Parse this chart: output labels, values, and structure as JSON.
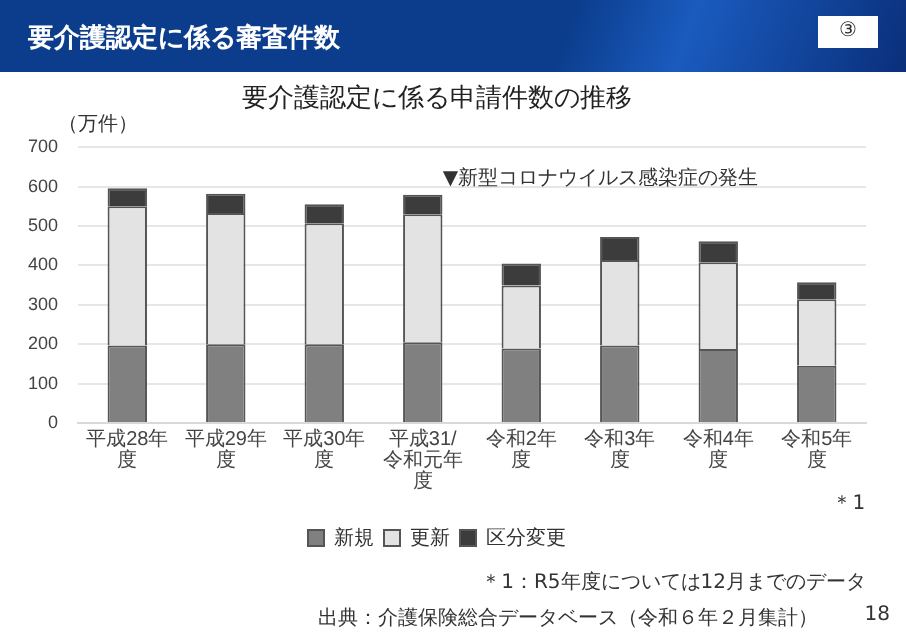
{
  "chart_data": {
    "type": "bar",
    "title": "要介護認定に係る審査件数",
    "subtitle": "要介護認定に係る申請件数の推移",
    "ylabel": "（万件）",
    "categories": [
      "平成28年度",
      "平成29年度",
      "平成30年度",
      "平成31/令和元年度",
      "令和2年度",
      "令和3年度",
      "令和4年度",
      "令和5年度"
    ],
    "series": [
      {
        "name": "新規",
        "color": "#808080",
        "values": [
          197,
          200,
          200,
          205,
          189,
          197,
          188,
          145
        ]
      },
      {
        "name": "更新",
        "color": "#e3e3e3",
        "values": [
          353,
          333,
          307,
          325,
          160,
          217,
          220,
          169
        ]
      },
      {
        "name": "区分変更",
        "color": "#3c3c3c",
        "values": [
          46,
          49,
          48,
          49,
          56,
          58,
          53,
          43
        ]
      }
    ],
    "stacked": true,
    "ylim": [
      0,
      700
    ],
    "yticks": [
      0,
      100,
      200,
      300,
      400,
      500,
      600,
      700
    ],
    "grid": "y",
    "legend": "bottom",
    "annotations": [
      "▼新型コロナウイルス感染症の発生",
      "＊1",
      "＊1：R5年度については12月までのデータ",
      "出典：介護保険総合データベース（令和６年２月集計）",
      "③",
      "18"
    ]
  }
}
